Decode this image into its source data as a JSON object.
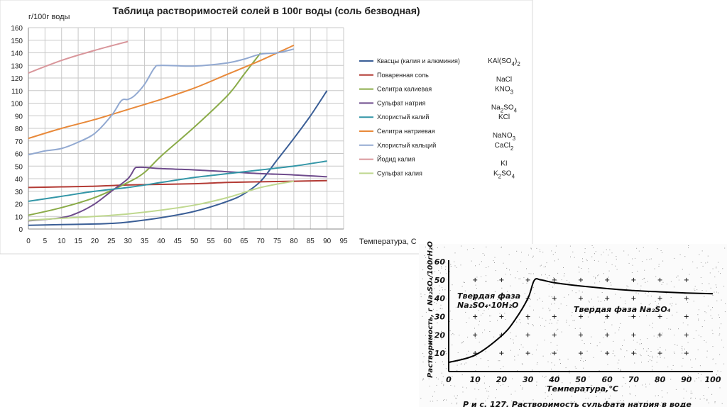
{
  "chart_data": [
    {
      "type": "line",
      "title": "Таблица растворимостей солей в 100г воды (соль безводная)",
      "ylabel": "г/100г воды",
      "xlabel": "Температура, С",
      "xlim": [
        0,
        95
      ],
      "ylim": [
        0,
        160
      ],
      "x_ticks": [
        "0",
        "5",
        "10",
        "15",
        "20",
        "25",
        "30",
        "35",
        "40",
        "45",
        "50",
        "55",
        "60",
        "65",
        "70",
        "75",
        "80",
        "85",
        "90",
        "95"
      ],
      "y_ticks": [
        "0",
        "10",
        "20",
        "30",
        "40",
        "50",
        "60",
        "70",
        "80",
        "90",
        "100",
        "110",
        "120",
        "130",
        "140",
        "150",
        "160"
      ],
      "grid": true,
      "legend_position": "right",
      "series": [
        {
          "name": "Квасцы (калия и алюминия)",
          "formula": "KAl(SO4)2",
          "color": "#3a5e96",
          "points": [
            [
              0,
              3
            ],
            [
              10,
              3.5
            ],
            [
              20,
              4
            ],
            [
              25,
              4.5
            ],
            [
              30,
              5.5
            ],
            [
              40,
              9
            ],
            [
              50,
              14
            ],
            [
              60,
              22
            ],
            [
              65,
              28
            ],
            [
              70,
              38
            ],
            [
              75,
              55
            ],
            [
              80,
              72
            ],
            [
              85,
              90
            ],
            [
              90,
              110
            ]
          ]
        },
        {
          "name": "Поваренная соль",
          "formula": "NaCl",
          "color": "#b33b35",
          "points": [
            [
              0,
              33
            ],
            [
              10,
              33.5
            ],
            [
              20,
              34
            ],
            [
              30,
              35
            ],
            [
              40,
              35.5
            ],
            [
              50,
              36
            ],
            [
              60,
              37
            ],
            [
              70,
              37.5
            ],
            [
              80,
              38
            ],
            [
              90,
              38.5
            ]
          ]
        },
        {
          "name": "Селитра калиевая",
          "formula": "KNO3",
          "color": "#8aab48",
          "points": [
            [
              0,
              11
            ],
            [
              10,
              17
            ],
            [
              20,
              25
            ],
            [
              30,
              37
            ],
            [
              35,
              45
            ],
            [
              40,
              58
            ],
            [
              50,
              81
            ],
            [
              60,
              106
            ],
            [
              65,
              123
            ],
            [
              70,
              140
            ]
          ]
        },
        {
          "name": "Сульфат натрия",
          "formula": "Na2SO4",
          "color": "#6e4b8c",
          "points": [
            [
              0,
              6.5
            ],
            [
              10,
              9
            ],
            [
              15,
              13
            ],
            [
              20,
              20
            ],
            [
              25,
              30
            ],
            [
              30,
              40
            ],
            [
              32,
              48
            ],
            [
              33,
              49
            ],
            [
              35,
              49
            ],
            [
              40,
              48
            ],
            [
              50,
              47
            ],
            [
              60,
              45.5
            ],
            [
              70,
              44
            ],
            [
              80,
              43
            ],
            [
              90,
              41.5
            ]
          ]
        },
        {
          "name": "Хлористый калий",
          "formula": "KCl",
          "color": "#3396a7",
          "points": [
            [
              0,
              22
            ],
            [
              10,
              26
            ],
            [
              20,
              30
            ],
            [
              30,
              33
            ],
            [
              40,
              37
            ],
            [
              50,
              41
            ],
            [
              60,
              44
            ],
            [
              70,
              47
            ],
            [
              80,
              50
            ],
            [
              90,
              54
            ]
          ]
        },
        {
          "name": "Селитра натриевая",
          "formula": "NaNO3",
          "color": "#e8893a",
          "points": [
            [
              0,
              72
            ],
            [
              10,
              80
            ],
            [
              20,
              87
            ],
            [
              30,
              95
            ],
            [
              40,
              103
            ],
            [
              50,
              112
            ],
            [
              60,
              123
            ],
            [
              70,
              134
            ],
            [
              80,
              146
            ]
          ]
        },
        {
          "name": "Хлористый кальций",
          "formula": "CaCl2",
          "color": "#92a9d1",
          "points": [
            [
              0,
              59
            ],
            [
              5,
              62
            ],
            [
              10,
              64
            ],
            [
              15,
              69
            ],
            [
              20,
              76
            ],
            [
              25,
              90
            ],
            [
              28,
              102
            ],
            [
              30,
              103
            ],
            [
              32,
              106
            ],
            [
              35,
              115
            ],
            [
              38,
              128
            ],
            [
              40,
              130
            ],
            [
              50,
              129.5
            ],
            [
              60,
              132
            ],
            [
              65,
              135
            ],
            [
              70,
              139
            ],
            [
              75,
              140
            ],
            [
              80,
              143
            ]
          ]
        },
        {
          "name": "Йодид калия",
          "formula": "KI",
          "color": "#d9969b",
          "points": [
            [
              0,
              124
            ],
            [
              10,
              134
            ],
            [
              20,
              142
            ],
            [
              30,
              149
            ]
          ]
        },
        {
          "name": "Сульфат калия",
          "formula": "K2SO4",
          "color": "#bfd88f",
          "points": [
            [
              0,
              7
            ],
            [
              10,
              8.5
            ],
            [
              20,
              10
            ],
            [
              30,
              12
            ],
            [
              40,
              15
            ],
            [
              50,
              19
            ],
            [
              60,
              25
            ],
            [
              70,
              33
            ],
            [
              80,
              38
            ]
          ]
        }
      ]
    },
    {
      "type": "line",
      "ylabel": "Растворимость, г Na₂SO₄/100гH₂O",
      "xlabel": "Температура,°С",
      "xlim": [
        0,
        100
      ],
      "ylim": [
        0,
        60
      ],
      "x_ticks": [
        "0",
        "10",
        "20",
        "30",
        "40",
        "50",
        "60",
        "70",
        "80",
        "90",
        "100"
      ],
      "y_ticks": [
        "10",
        "20",
        "30",
        "40",
        "50",
        "60"
      ],
      "region_labels": [
        "Твердая фаза",
        "Na₂SO₄·10H₂O",
        "Твердая фаза Na₂SO₄"
      ],
      "caption": "Р и с. 127. Растворимость сульфата натрия в воде",
      "series": [
        {
          "name": "",
          "color": "#000000",
          "points": [
            [
              0,
              5
            ],
            [
              10,
              9
            ],
            [
              20,
              19.5
            ],
            [
              25,
              28
            ],
            [
              30,
              40
            ],
            [
              32.4,
              49.8
            ],
            [
              35,
              50
            ],
            [
              40,
              48.5
            ],
            [
              50,
              46.7
            ],
            [
              60,
              45.3
            ],
            [
              70,
              44.2
            ],
            [
              80,
              43.5
            ],
            [
              90,
              42.9
            ],
            [
              100,
              42.5
            ]
          ]
        }
      ]
    }
  ]
}
